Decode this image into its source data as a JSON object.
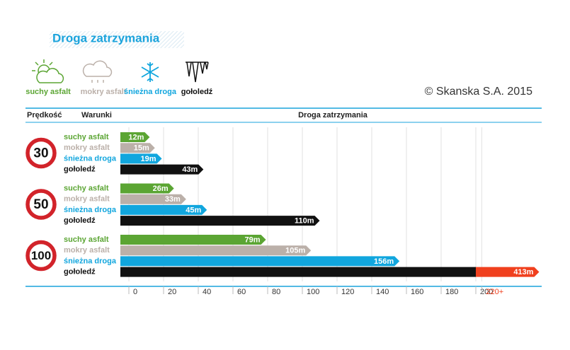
{
  "chart_data": {
    "type": "bar",
    "title": "Droga zatrzymania",
    "copyright": "© Skanska S.A. 2015",
    "column_headers": [
      "Prędkość",
      "Warunki",
      "Droga zatrzymania"
    ],
    "categories": [
      "30",
      "50",
      "100"
    ],
    "series": [
      {
        "name": "suchy asfalt",
        "color": "#5ba533",
        "values": [
          12,
          26,
          79
        ],
        "value_labels": [
          "12m",
          "26m",
          "79m"
        ]
      },
      {
        "name": "mokry asfalt",
        "color": "#bbb0a9",
        "values": [
          15,
          33,
          105
        ],
        "value_labels": [
          "15m",
          "33m",
          "105m"
        ]
      },
      {
        "name": "śnieżna droga",
        "color": "#11a6de",
        "values": [
          19,
          45,
          156
        ],
        "value_labels": [
          "19m",
          "45m",
          "156m"
        ]
      },
      {
        "name": "gołoledź",
        "color": "#111111",
        "values": [
          43,
          110,
          413
        ],
        "value_labels": [
          "43m",
          "110m",
          "413m"
        ]
      }
    ],
    "xlim": [
      0,
      220
    ],
    "xticks": [
      0,
      20,
      40,
      60,
      80,
      100,
      120,
      140,
      160,
      180,
      200,
      {
        "value": 220,
        "label": "220+"
      }
    ],
    "axis_break": 200,
    "break_color": "#f0401e",
    "sign_color": "#d2232a",
    "grid": true
  }
}
